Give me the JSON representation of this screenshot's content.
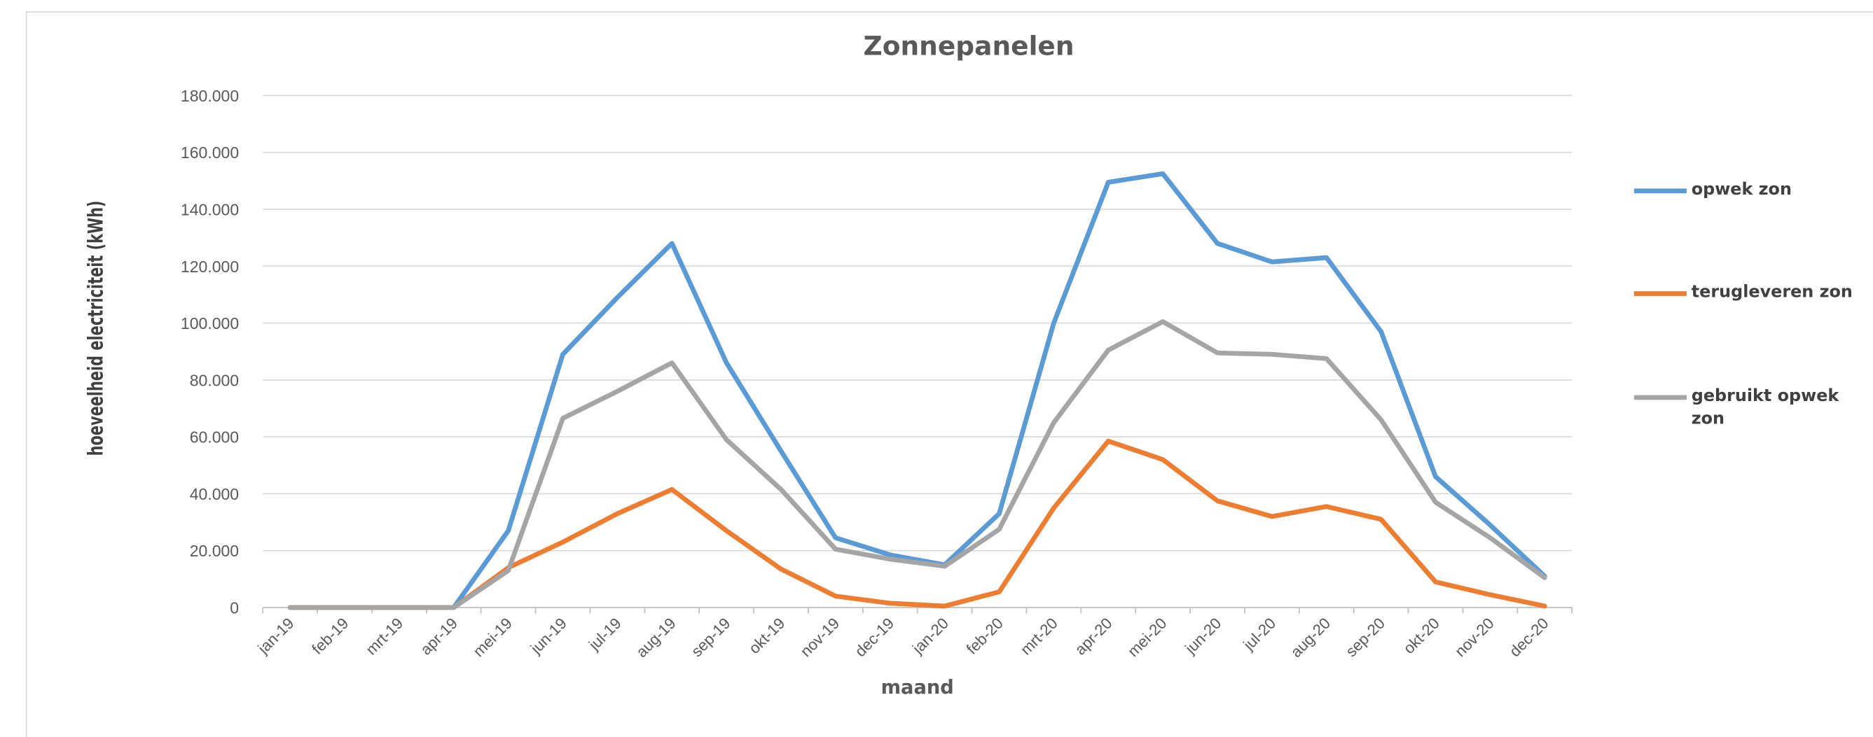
{
  "chart_data": {
    "type": "line",
    "title": "Zonnepanelen",
    "x_label": "maand",
    "y_label": "hoeveelheid electriciteit (kWh)",
    "categories": [
      "jan-19",
      "feb-19",
      "mrt-19",
      "apr-19",
      "mei-19",
      "jun-19",
      "jul-19",
      "aug-19",
      "sep-19",
      "okt-19",
      "nov-19",
      "dec-19",
      "jan-20",
      "feb-20",
      "mrt-20",
      "apr-20",
      "mei-20",
      "jun-20",
      "jul-20",
      "aug-20",
      "sep-20",
      "okt-20",
      "nov-20",
      "dec-20"
    ],
    "series": [
      {
        "name": "opwek zon",
        "color": "#5b9bd5",
        "values": [
          0,
          0,
          0,
          0,
          27000,
          89000,
          109000,
          128000,
          86000,
          55000,
          24500,
          18500,
          15000,
          33000,
          100000,
          149500,
          152500,
          128000,
          121500,
          123000,
          97000,
          46000,
          29000,
          11000
        ]
      },
      {
        "name": "terugleveren zon",
        "color": "#ed7d31",
        "values": [
          0,
          0,
          0,
          0,
          14000,
          23000,
          33000,
          41500,
          27000,
          13500,
          4000,
          1500,
          500,
          5500,
          35000,
          58500,
          52000,
          37500,
          32000,
          35500,
          31000,
          9000,
          4500,
          500
        ]
      },
      {
        "name": "gebruikt opwek zon",
        "color": "#a5a5a5",
        "values": [
          0,
          0,
          0,
          0,
          13000,
          66500,
          76000,
          86000,
          59000,
          41500,
          20500,
          17000,
          14500,
          27500,
          65000,
          90500,
          100500,
          89500,
          89000,
          87500,
          66000,
          37000,
          24500,
          10500
        ]
      }
    ],
    "ylim": [
      0,
      180000
    ],
    "yticks": [
      0,
      {
        "value": 20000,
        "label": "20.000"
      },
      {
        "value": 40000,
        "label": "40.000"
      },
      {
        "value": 60000,
        "label": "60.000"
      },
      {
        "value": 80000,
        "label": "80.000"
      },
      {
        "value": 100000,
        "label": "100.000"
      },
      {
        "value": 120000,
        "label": "120.000"
      },
      {
        "value": 140000,
        "label": "140.000"
      },
      {
        "value": 160000,
        "label": "160.000"
      },
      {
        "value": 180000,
        "label": "180.000"
      }
    ],
    "grid": true,
    "legend": "right"
  }
}
